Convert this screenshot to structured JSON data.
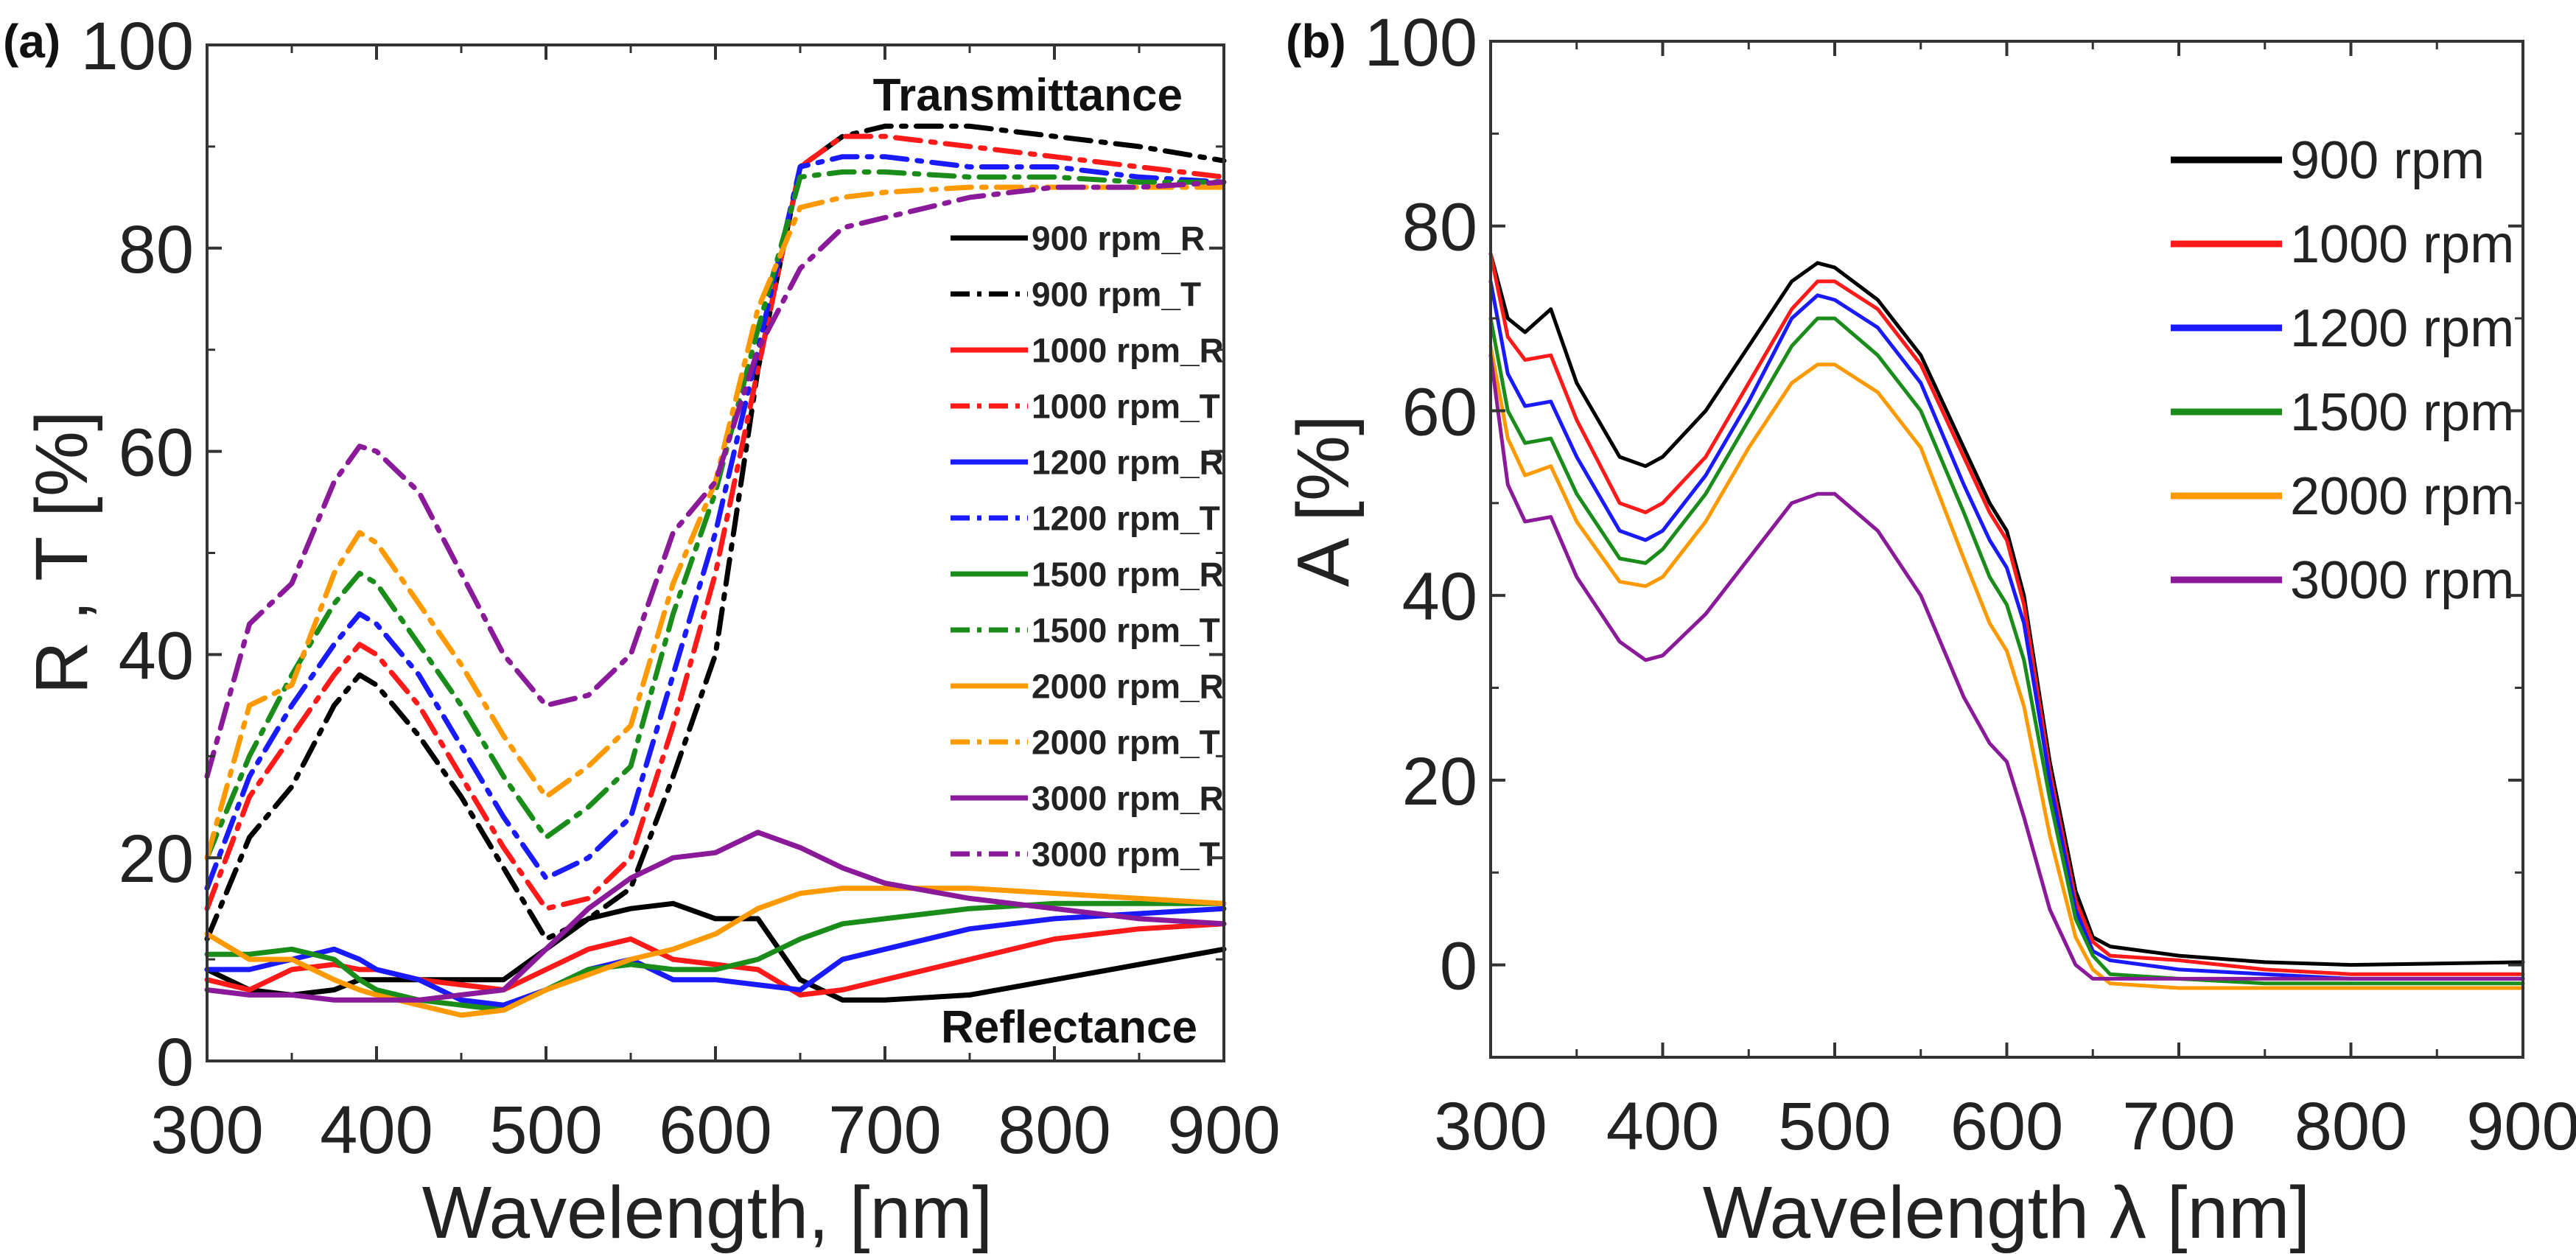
{
  "chart_data": [
    {
      "panel_label": "(a)",
      "type": "line",
      "xlabel": "Wavelength, [nm]",
      "ylabel": "R , T [%]",
      "xlim": [
        300,
        900
      ],
      "ylim": [
        0,
        100
      ],
      "xticks": [
        300,
        400,
        500,
        600,
        700,
        800,
        900
      ],
      "yticks": [
        0,
        20,
        40,
        60,
        80,
        100
      ],
      "grid": false,
      "legend_position": "right",
      "annotations": [
        "Transmittance",
        "Reflectance"
      ],
      "x": [
        300,
        325,
        350,
        375,
        390,
        400,
        425,
        450,
        475,
        500,
        525,
        550,
        575,
        600,
        625,
        650,
        675,
        700,
        750,
        800,
        850,
        900
      ],
      "series": [
        {
          "name": "900 rpm_R",
          "color": "#000000",
          "style": "solid",
          "values": [
            9,
            7,
            6.5,
            7,
            8,
            8,
            8,
            8,
            8,
            11,
            14,
            15,
            15.5,
            14,
            14,
            8,
            6,
            6,
            6.5,
            8,
            9.5,
            11
          ]
        },
        {
          "name": "900 rpm_T",
          "color": "#000000",
          "style": "dashdot",
          "values": [
            12,
            22,
            27,
            35,
            38,
            37,
            32,
            26,
            19,
            12,
            14,
            17,
            28,
            40,
            68,
            88,
            91,
            92,
            92,
            91,
            90,
            88.6
          ]
        },
        {
          "name": "1000 rpm_R",
          "color": "#ff1a1a",
          "style": "solid",
          "values": [
            8,
            7,
            9,
            9.5,
            9,
            9,
            8,
            7.5,
            7,
            9,
            11,
            12,
            10,
            9.5,
            9,
            6.5,
            7,
            8,
            10,
            12,
            13,
            13.5
          ]
        },
        {
          "name": "1000 rpm_T",
          "color": "#ff1a1a",
          "style": "dashdot",
          "values": [
            15,
            26,
            32,
            38,
            41,
            40,
            35,
            28,
            21,
            15,
            16,
            20,
            33,
            48,
            68,
            88,
            91,
            91,
            90,
            89,
            88,
            87
          ]
        },
        {
          "name": "1200 rpm_R",
          "color": "#1a1aff",
          "style": "solid",
          "values": [
            9,
            9,
            10,
            11,
            10,
            9,
            8,
            6,
            5.5,
            7,
            9,
            10,
            8,
            8,
            7.5,
            7,
            10,
            11,
            13,
            14,
            14.5,
            15
          ]
        },
        {
          "name": "1200 rpm_T",
          "color": "#1a1aff",
          "style": "dashdot",
          "values": [
            17,
            28,
            35,
            41,
            44,
            43,
            38,
            31,
            24,
            18,
            20,
            24,
            38,
            52,
            70,
            88,
            89,
            89,
            88,
            88,
            87,
            86.5
          ]
        },
        {
          "name": "1500 rpm_R",
          "color": "#1a8c1a",
          "style": "solid",
          "values": [
            10.5,
            10.5,
            11,
            10,
            8,
            7,
            6,
            5.5,
            5,
            7,
            9,
            9.5,
            9,
            9,
            10,
            12,
            13.5,
            14,
            15,
            15.5,
            15.5,
            15.5
          ]
        },
        {
          "name": "1500 rpm_T",
          "color": "#1a8c1a",
          "style": "dashdot",
          "values": [
            20,
            30,
            38,
            45,
            48,
            47,
            41,
            35,
            28,
            22,
            25,
            29,
            44,
            56,
            72,
            87,
            87.5,
            87.5,
            87,
            87,
            86.5,
            86.5
          ]
        },
        {
          "name": "2000 rpm_R",
          "color": "#ff9900",
          "style": "solid",
          "values": [
            12.5,
            10,
            10,
            8,
            7,
            6.5,
            5.5,
            4.5,
            5,
            7,
            8.5,
            10,
            11,
            12.5,
            15,
            16.5,
            17,
            17,
            17,
            16.5,
            16,
            15.5
          ]
        },
        {
          "name": "2000 rpm_T",
          "color": "#ff9900",
          "style": "dashdot",
          "values": [
            20,
            35,
            37,
            48,
            52,
            51,
            45,
            39,
            32,
            26,
            29,
            33,
            47,
            57,
            74,
            84,
            85,
            85.5,
            86,
            86,
            86,
            86
          ]
        },
        {
          "name": "3000 rpm_R",
          "color": "#8b1a9b",
          "style": "solid",
          "values": [
            7,
            6.5,
            6.5,
            6,
            6,
            6,
            6,
            6.5,
            7,
            11,
            15,
            18,
            20,
            20.5,
            22.5,
            21,
            19,
            17.5,
            16,
            15,
            14,
            13.5
          ]
        },
        {
          "name": "3000 rpm_T",
          "color": "#8b1a9b",
          "style": "dashdot",
          "values": [
            28,
            43,
            47,
            57,
            60.5,
            60,
            56,
            48,
            40,
            35,
            36,
            40,
            52,
            57,
            70,
            78,
            82,
            83,
            85,
            86,
            86,
            86.5
          ]
        }
      ]
    },
    {
      "panel_label": "(b)",
      "type": "line",
      "xlabel": "Wavelength λ [nm]",
      "ylabel": "A [%]",
      "xlim": [
        300,
        900
      ],
      "ylim": [
        -10,
        100
      ],
      "xticks": [
        300,
        400,
        500,
        600,
        700,
        800,
        900
      ],
      "yticks": [
        0,
        20,
        40,
        60,
        80,
        100
      ],
      "grid": false,
      "legend_position": "top-right",
      "x": [
        300,
        310,
        320,
        335,
        350,
        375,
        390,
        400,
        425,
        450,
        475,
        490,
        500,
        525,
        550,
        575,
        590,
        600,
        610,
        625,
        640,
        650,
        660,
        700,
        750,
        800,
        900
      ],
      "series": [
        {
          "name": "900 rpm",
          "color": "#000000",
          "style": "solid",
          "values": [
            77,
            70,
            68.5,
            71,
            63,
            55,
            54,
            55,
            60,
            67,
            74,
            76,
            75.5,
            72,
            66,
            56,
            50,
            47,
            40,
            22,
            8,
            3,
            2,
            1,
            0.3,
            0,
            0.3
          ]
        },
        {
          "name": "1000 rpm",
          "color": "#ff1a1a",
          "style": "solid",
          "values": [
            77,
            68,
            65.5,
            66,
            59,
            50,
            49,
            50,
            55,
            63,
            71,
            74,
            74,
            71,
            65,
            55,
            49,
            46,
            39,
            21,
            7,
            2.5,
            1,
            0.5,
            -0.5,
            -1,
            -1
          ]
        },
        {
          "name": "1200 rpm",
          "color": "#1a1aff",
          "style": "solid",
          "values": [
            74,
            64,
            60.5,
            61,
            55,
            47,
            46,
            47,
            53,
            61,
            70,
            72.5,
            72,
            69,
            63,
            52,
            46,
            43,
            37,
            20,
            6,
            1.5,
            0.5,
            -0.5,
            -1,
            -1.5,
            -1.5
          ]
        },
        {
          "name": "1500 rpm",
          "color": "#1a8c1a",
          "style": "solid",
          "values": [
            70,
            60,
            56.5,
            57,
            51,
            44,
            43.5,
            45,
            51,
            59,
            67,
            70,
            70,
            66,
            60,
            49,
            42,
            39,
            33,
            18,
            5,
            1,
            -1,
            -1.5,
            -2,
            -2,
            -2
          ]
        },
        {
          "name": "2000 rpm",
          "color": "#ff9900",
          "style": "solid",
          "values": [
            67,
            57,
            53,
            54,
            48,
            41.5,
            41,
            42,
            48,
            56,
            63,
            65,
            65,
            62,
            56,
            44,
            37,
            34,
            28,
            14,
            3,
            -0.5,
            -2,
            -2.5,
            -2.5,
            -2.5,
            -2.5
          ]
        },
        {
          "name": "3000 rpm",
          "color": "#8b1a9b",
          "style": "solid",
          "values": [
            66,
            52,
            48,
            48.5,
            42,
            35,
            33,
            33.5,
            38,
            44,
            50,
            51,
            51,
            47,
            40,
            29,
            24,
            22,
            16,
            6,
            0,
            -1.5,
            -1.5,
            -1.5,
            -1.5,
            -1.5,
            -1.5
          ]
        }
      ]
    }
  ]
}
